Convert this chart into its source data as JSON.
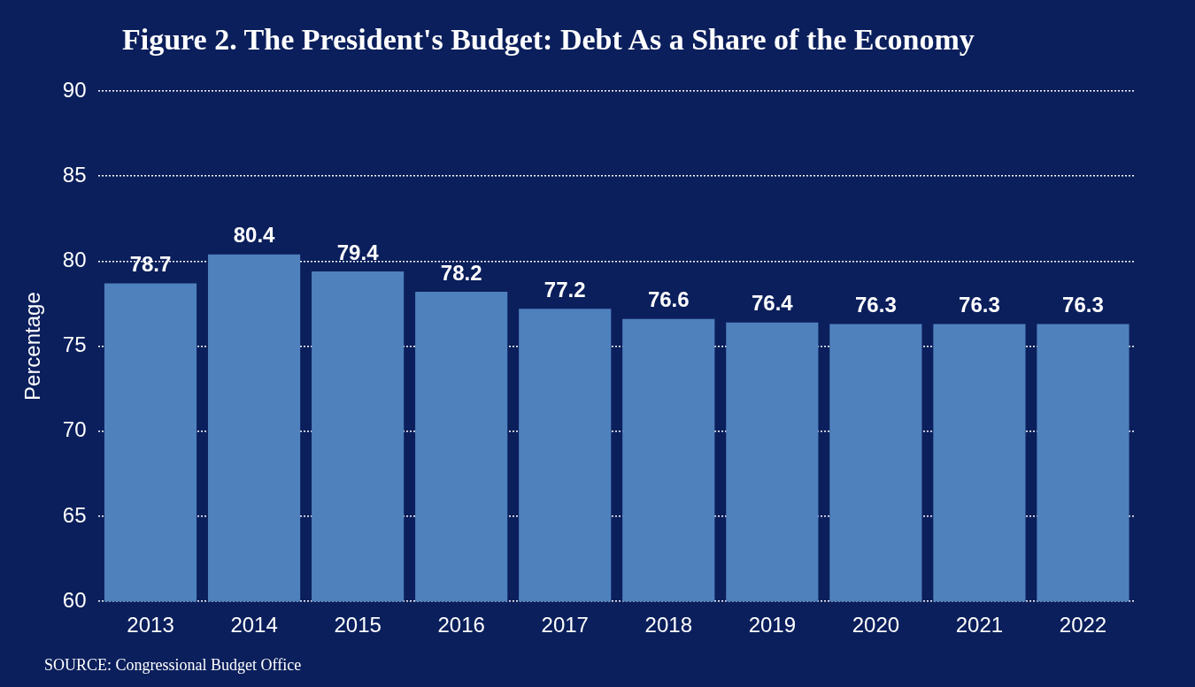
{
  "chart_data": {
    "type": "bar",
    "title": "Figure 2.  The President's Budget: Debt As a Share of the Economy",
    "ylabel": "Percentage",
    "categories": [
      "2013",
      "2014",
      "2015",
      "2016",
      "2017",
      "2018",
      "2019",
      "2020",
      "2021",
      "2022"
    ],
    "values": [
      78.7,
      80.4,
      79.4,
      78.2,
      77.2,
      76.6,
      76.4,
      76.3,
      76.3,
      76.3
    ],
    "color": "#4f81bd",
    "ylim": [
      60,
      90
    ],
    "yticks": [
      60,
      65,
      70,
      75,
      80,
      85,
      90
    ],
    "grid": "y",
    "data_labels": true,
    "legend": false,
    "annotations": [
      "SOURCE:  Congressional Budget Office"
    ]
  }
}
